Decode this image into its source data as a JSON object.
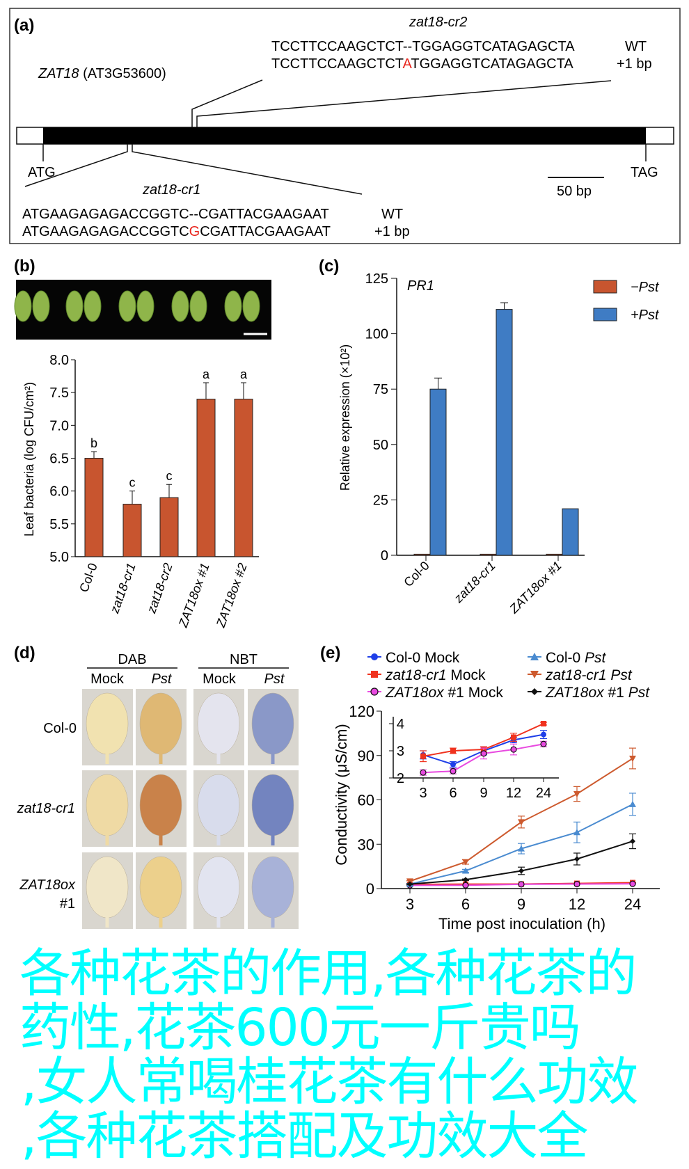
{
  "panel_a": {
    "label": "(a)",
    "gene": "ZAT18 (AT3G53600)",
    "gene_italic": "ZAT18",
    "gene_id": " (AT3G53600)",
    "start": "ATG",
    "stop": "TAG",
    "scale": "50 bp",
    "cr2": {
      "name": "zat18-cr2",
      "wt_seq": "TCCTTCCAAGCTCT--TGGAGGTCATAGAGCTA",
      "mut_pre": "TCCTTCCAAGCTCT",
      "mut_ins": "A",
      "mut_post": "TGGAGGTCATAGAGCTA",
      "wt_label": "WT",
      "mut_label": "+1 bp"
    },
    "cr1": {
      "name": "zat18-cr1",
      "wt_seq": "ATGAAGAGAGACCGGTC--CGATTACGAAGAAT",
      "mut_pre": "ATGAAGAGAGACCGGTC",
      "mut_ins": "G",
      "mut_post": "CGATTACGAAGAAT",
      "wt_label": "WT",
      "mut_label": "+1 bp"
    },
    "insert_color": "#e8241c"
  },
  "panel_b": {
    "label": "(b)"
  },
  "panel_c": {
    "label": "(c)"
  },
  "panel_d": {
    "label": "(d)",
    "groups": [
      "DAB",
      "NBT"
    ],
    "columns": [
      "Mock",
      "Pst",
      "Mock",
      "Pst"
    ],
    "rows": [
      "Col-0",
      "zat18-cr1",
      "ZAT18ox",
      "#1"
    ]
  },
  "panel_e": {
    "label": "(e)"
  },
  "watermark": [
    "各种花茶的作用,各种花茶的",
    "药性,花茶600元一斤贵吗",
    ",女人常喝桂花茶有什么功效",
    ",各种花茶搭配及功效大全"
  ],
  "chart_data": [
    {
      "panel": "b",
      "type": "bar",
      "ylabel": "Leaf bacteria (log CFU/cm²)",
      "categories": [
        "Col-0",
        "zat18-cr1",
        "zat18-cr2",
        "ZAT18ox #1",
        "ZAT18ox #2"
      ],
      "values": [
        6.5,
        5.8,
        5.9,
        7.4,
        7.4
      ],
      "errors": [
        0.1,
        0.2,
        0.2,
        0.25,
        0.25
      ],
      "letters": [
        "b",
        "c",
        "c",
        "a",
        "a"
      ],
      "ylim": [
        5.0,
        8.0
      ],
      "yticks": [
        "5.0",
        "5.5",
        "6.0",
        "6.5",
        "7.0",
        "7.5",
        "8.0"
      ],
      "color": "#c8552f"
    },
    {
      "panel": "c",
      "type": "bar",
      "title": "PR1",
      "ylabel": "Relative expression (×10²)",
      "categories": [
        "Col-0",
        "zat18-cr1",
        "ZAT18ox #1"
      ],
      "series": [
        {
          "name": "−Pst",
          "values": [
            0.5,
            0.5,
            0.5
          ],
          "errors": [
            0,
            0,
            0
          ],
          "color": "#c8552f"
        },
        {
          "name": "+Pst",
          "values": [
            75,
            111,
            21
          ],
          "errors": [
            5,
            3,
            0.5
          ],
          "color": "#3f7cc4"
        }
      ],
      "ylim": [
        0,
        125
      ],
      "yticks": [
        "0",
        "25",
        "50",
        "75",
        "100",
        "125"
      ],
      "legend": "top-right"
    },
    {
      "panel": "e",
      "type": "line",
      "xlabel": "Time post inoculation (h)",
      "ylabel": "Conductivity (μS/cm)",
      "x": [
        "3",
        "6",
        "9",
        "12",
        "24"
      ],
      "ylim": [
        0,
        120
      ],
      "yticks": [
        "0",
        "30",
        "60",
        "90",
        "120"
      ],
      "legend": "top",
      "series": [
        {
          "name": "Col-0 Mock",
          "values": [
            2.85,
            2.5,
            3.0,
            3.4,
            3.6
          ],
          "errors": [
            0.15,
            0.1,
            0.15,
            0.1,
            0.15
          ],
          "color": "#1f3fe8",
          "marker": "circle"
        },
        {
          "name": "zat18-cr1 Mock",
          "values": [
            2.8,
            3.0,
            3.05,
            3.5,
            4.0
          ],
          "errors": [
            0.2,
            0.1,
            0.1,
            0.15,
            0.05
          ],
          "color": "#f0321e",
          "marker": "square"
        },
        {
          "name": "ZAT18ox #1 Mock",
          "values": [
            2.2,
            2.25,
            2.9,
            3.05,
            3.25
          ],
          "errors": [
            0.1,
            0.1,
            0.2,
            0.2,
            0.1
          ],
          "color": "#e84ae0",
          "marker": "open-circle"
        },
        {
          "name": "Col-0 Pst",
          "values": [
            3,
            12,
            27,
            38,
            57
          ],
          "errors": [
            0.5,
            1,
            3.5,
            7,
            7.5
          ],
          "color": "#4a8bd0",
          "marker": "triangle-up"
        },
        {
          "name": "zat18-cr1 Pst",
          "values": [
            5,
            18,
            45,
            64,
            88
          ],
          "errors": [
            0.5,
            1.5,
            4,
            5,
            7
          ],
          "color": "#cd5a2e",
          "marker": "triangle-down"
        },
        {
          "name": "ZAT18ox #1 Pst",
          "values": [
            3,
            6,
            12,
            20,
            32
          ],
          "errors": [
            0.3,
            0.5,
            2.5,
            4,
            5
          ],
          "color": "#111111",
          "marker": "diamond"
        }
      ],
      "inset": {
        "ylim": [
          2,
          4
        ],
        "yticks": [
          "2",
          "3",
          "4"
        ],
        "series_shown": [
          "Col-0 Mock",
          "zat18-cr1 Mock",
          "ZAT18ox #1 Mock"
        ]
      }
    }
  ]
}
